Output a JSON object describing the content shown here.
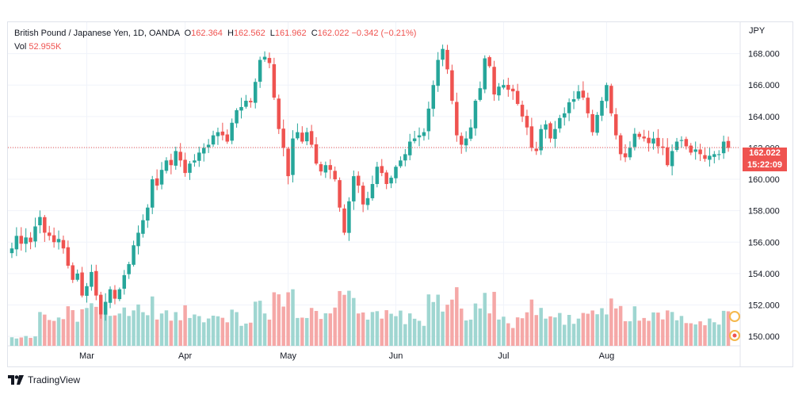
{
  "legend": {
    "title": "British Pound / Japanese Yen, 1D, OANDA",
    "open_label": "O",
    "open": "162.364",
    "high_label": "H",
    "high": "162.562",
    "low_label": "L",
    "low": "161.962",
    "close_label": "C",
    "close": "162.022",
    "change": "−0.342 (−0.21%)",
    "vol_label": "Vol",
    "vol": "52.955K"
  },
  "currency": "JPY",
  "price_tag": {
    "price": "162.022",
    "countdown": "15:22:09"
  },
  "footer": {
    "brand": "TradingView"
  },
  "colors": {
    "up": "#26a69a",
    "down": "#ef5350",
    "vol_up": "#9fd6d1",
    "vol_down": "#f5a8a7",
    "grid": "#f0f3fa",
    "label_red": "#ef5350"
  },
  "chart_data": {
    "type": "candlestick",
    "title": "British Pound / Japanese Yen, 1D, OANDA",
    "ylim": [
      149.4,
      170.0
    ],
    "y_ticks": [
      "168.000",
      "166.000",
      "164.000",
      "162.000",
      "160.000",
      "158.000",
      "156.000",
      "154.000",
      "152.000",
      "150.000"
    ],
    "x_ticks": [
      "Mar",
      "Apr",
      "May",
      "Jun",
      "Jul",
      "Aug"
    ],
    "current_price": 162.022,
    "closes": [
      155.6,
      156.4,
      155.9,
      156.3,
      156.0,
      157.0,
      157.6,
      156.6,
      156.4,
      156.0,
      156.2,
      155.6,
      154.5,
      153.6,
      154.0,
      152.6,
      153.2,
      154.1,
      152.6,
      151.4,
      152.2,
      153.0,
      152.4,
      153.0,
      153.9,
      154.6,
      155.8,
      156.6,
      157.4,
      158.2,
      160.0,
      159.6,
      160.6,
      161.2,
      160.9,
      161.8,
      161.2,
      160.4,
      161.0,
      161.2,
      161.7,
      162.0,
      162.2,
      162.8,
      163.0,
      162.8,
      162.4,
      163.6,
      164.4,
      164.6,
      165.0,
      164.9,
      166.2,
      167.6,
      167.8,
      167.4,
      165.2,
      163.2,
      162.0,
      160.2,
      162.6,
      163.0,
      162.4,
      163.0,
      162.2,
      161.0,
      160.5,
      160.9,
      160.6,
      160.0,
      158.2,
      156.6,
      158.6,
      160.2,
      159.6,
      158.4,
      158.8,
      159.7,
      160.8,
      160.4,
      159.7,
      160.1,
      160.8,
      161.2,
      161.6,
      162.4,
      162.6,
      162.8,
      163.0,
      164.5,
      166.0,
      167.6,
      168.3,
      167.0,
      165.0,
      162.8,
      162.2,
      162.6,
      163.3,
      165.0,
      165.8,
      167.7,
      167.2,
      165.4,
      165.9,
      166.0,
      165.7,
      165.6,
      164.8,
      164.0,
      163.3,
      162.0,
      161.8,
      163.2,
      163.5,
      162.6,
      163.2,
      163.9,
      164.2,
      164.9,
      165.1,
      165.6,
      165.2,
      164.2,
      163.0,
      164.1,
      165.0,
      166.0,
      164.2,
      162.8,
      161.6,
      161.4,
      162.0,
      162.9,
      162.7,
      162.6,
      162.3,
      162.6,
      162.1,
      162.0,
      160.9,
      161.8,
      162.4,
      162.5,
      162.1,
      161.7,
      161.9,
      161.6,
      161.3,
      161.5,
      161.6,
      161.6,
      162.4,
      162.0
    ]
  }
}
